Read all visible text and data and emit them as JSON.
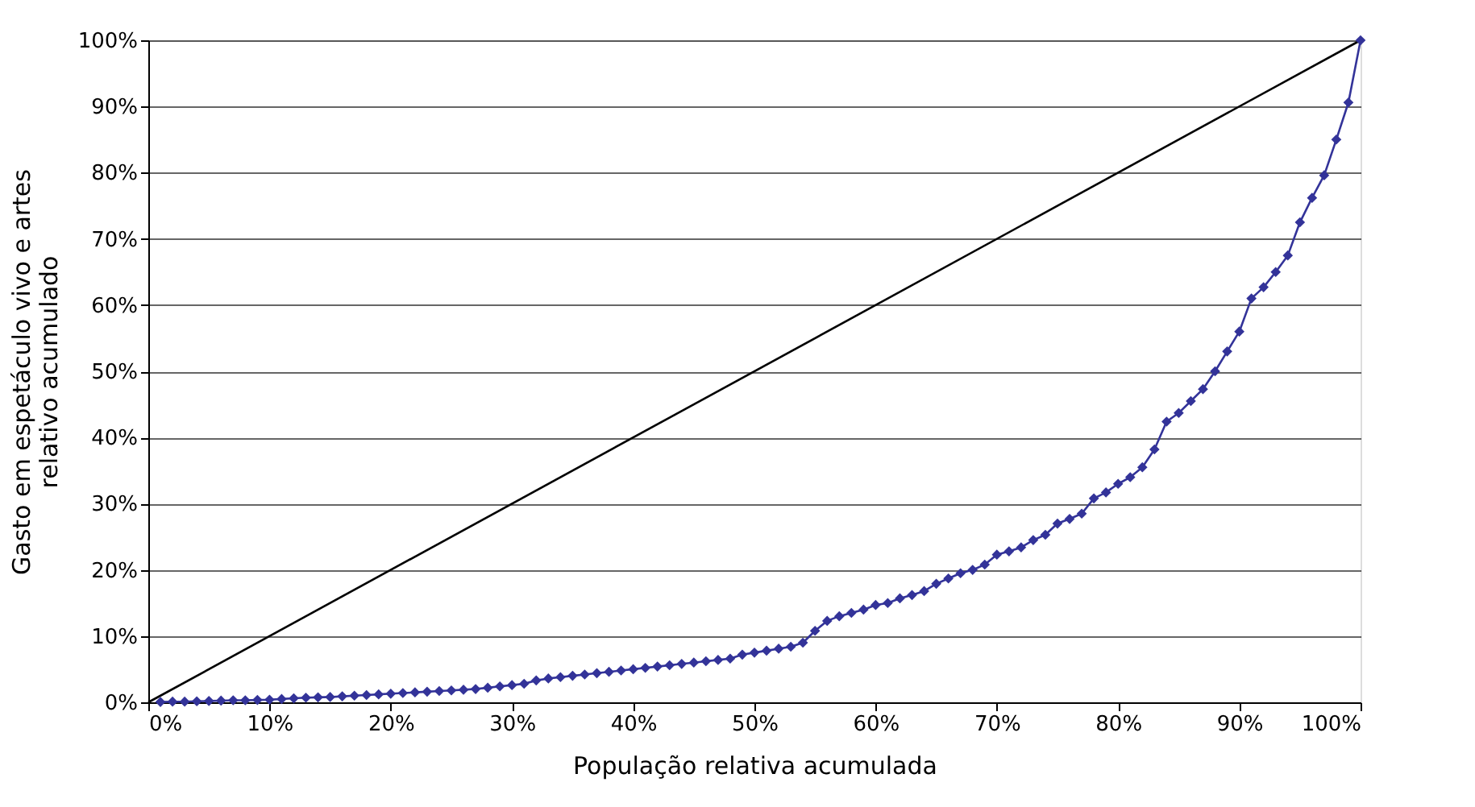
{
  "chart_data": {
    "type": "line",
    "xlabel": "População relativa acumulada",
    "ylabel": "Gasto em espetáculo vivo e artes relativo acumulado",
    "xlim": [
      0,
      100
    ],
    "ylim": [
      0,
      100
    ],
    "xticks": [
      {
        "value": 0,
        "label": "0%"
      },
      {
        "value": 10,
        "label": "10%"
      },
      {
        "value": 20,
        "label": "20%"
      },
      {
        "value": 30,
        "label": "30%"
      },
      {
        "value": 40,
        "label": "40%"
      },
      {
        "value": 50,
        "label": "50%"
      },
      {
        "value": 60,
        "label": "60%"
      },
      {
        "value": 70,
        "label": "70%"
      },
      {
        "value": 80,
        "label": "80%"
      },
      {
        "value": 90,
        "label": "90%"
      },
      {
        "value": 100,
        "label": "100%"
      }
    ],
    "yticks": [
      {
        "value": 0,
        "label": "0%"
      },
      {
        "value": 10,
        "label": "10%"
      },
      {
        "value": 20,
        "label": "20%"
      },
      {
        "value": 30,
        "label": "30%"
      },
      {
        "value": 40,
        "label": "40%"
      },
      {
        "value": 50,
        "label": "50%"
      },
      {
        "value": 60,
        "label": "60%"
      },
      {
        "value": 70,
        "label": "70%"
      },
      {
        "value": 80,
        "label": "80%"
      },
      {
        "value": 90,
        "label": "90%"
      },
      {
        "value": 100,
        "label": "100%"
      }
    ],
    "grid": "y",
    "series": [
      {
        "color": "#000000",
        "marker": "none",
        "x": [
          0,
          100
        ],
        "values": [
          0,
          100
        ]
      },
      {
        "color": "#333399",
        "marker": "diamond",
        "x": [
          1,
          2,
          3,
          4,
          5,
          6,
          7,
          8,
          9,
          10,
          11,
          12,
          13,
          14,
          15,
          16,
          17,
          18,
          19,
          20,
          21,
          22,
          23,
          24,
          25,
          26,
          27,
          28,
          29,
          30,
          31,
          32,
          33,
          34,
          35,
          36,
          37,
          38,
          39,
          40,
          41,
          42,
          43,
          44,
          45,
          46,
          47,
          48,
          49,
          50,
          51,
          52,
          53,
          54,
          55,
          56,
          57,
          58,
          59,
          60,
          61,
          62,
          63,
          64,
          65,
          66,
          67,
          68,
          69,
          70,
          71,
          72,
          73,
          74,
          75,
          76,
          77,
          78,
          79,
          80,
          81,
          82,
          83,
          84,
          85,
          86,
          87,
          88,
          89,
          90,
          91,
          92,
          93,
          94,
          95,
          96,
          97,
          98,
          99,
          100
        ],
        "values": [
          0.05,
          0.1,
          0.1,
          0.15,
          0.2,
          0.25,
          0.3,
          0.3,
          0.35,
          0.4,
          0.5,
          0.6,
          0.7,
          0.75,
          0.8,
          0.9,
          1.0,
          1.1,
          1.2,
          1.3,
          1.4,
          1.5,
          1.6,
          1.7,
          1.8,
          1.9,
          2.0,
          2.2,
          2.4,
          2.6,
          2.8,
          3.3,
          3.6,
          3.8,
          4.0,
          4.2,
          4.4,
          4.6,
          4.8,
          5.0,
          5.2,
          5.4,
          5.6,
          5.8,
          6.0,
          6.2,
          6.4,
          6.6,
          7.2,
          7.5,
          7.8,
          8.1,
          8.4,
          9.0,
          10.8,
          12.3,
          13.0,
          13.5,
          14.0,
          14.7,
          15.0,
          15.7,
          16.2,
          16.8,
          17.9,
          18.7,
          19.5,
          20.0,
          20.8,
          22.3,
          22.8,
          23.4,
          24.5,
          25.3,
          27.0,
          27.7,
          28.5,
          30.8,
          31.7,
          33.0,
          34.0,
          35.5,
          38.2,
          42.4,
          43.7,
          45.5,
          47.3,
          50.0,
          53.0,
          56.0,
          61.0,
          62.7,
          65.0,
          67.5,
          72.5,
          76.2,
          79.6,
          85.0,
          90.6,
          100.0
        ]
      }
    ]
  }
}
